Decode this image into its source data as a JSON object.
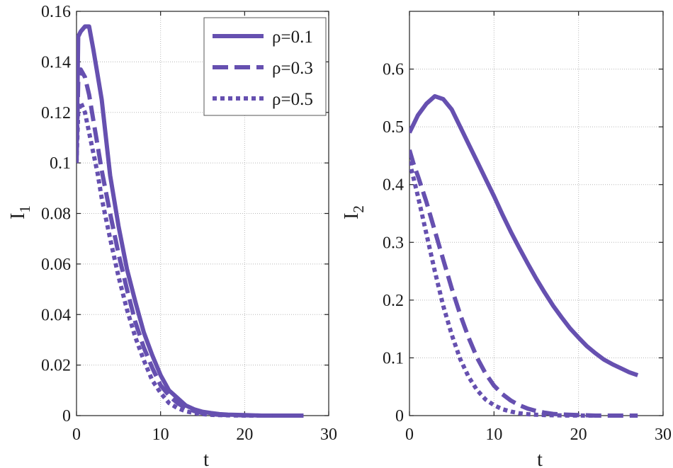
{
  "colors": {
    "series": "#6650b0"
  },
  "chart_data": [
    {
      "type": "line",
      "xlabel": "t",
      "ylabel": "I",
      "ylabel_subscript": "1",
      "xlim": [
        0,
        30
      ],
      "ylim": [
        0,
        0.16
      ],
      "xticks": [
        "0",
        "10",
        "20",
        "30"
      ],
      "yticks": [
        "0",
        "0.02",
        "0.04",
        "0.06",
        "0.08",
        "0.1",
        "0.12",
        "0.14",
        "0.16"
      ],
      "grid": true,
      "legend_position": "top-right",
      "series": [
        {
          "name": "ρ=0.1",
          "dash": "solid",
          "x": [
            0,
            0.2,
            0.5,
            1,
            1.5,
            2,
            2.5,
            3,
            4,
            5,
            6,
            7,
            8,
            9,
            10,
            11,
            12,
            13,
            14,
            15,
            16,
            17,
            18,
            20,
            22,
            25,
            27
          ],
          "y": [
            0.1,
            0.15,
            0.152,
            0.154,
            0.154,
            0.145,
            0.135,
            0.125,
            0.095,
            0.075,
            0.058,
            0.045,
            0.033,
            0.024,
            0.016,
            0.01,
            0.007,
            0.004,
            0.0025,
            0.0015,
            0.001,
            0.0006,
            0.0004,
            0.0002,
            0,
            0,
            0
          ]
        },
        {
          "name": "ρ=0.3",
          "dash": "dash",
          "x": [
            0,
            0.2,
            0.5,
            1,
            1.5,
            2,
            2.5,
            3,
            4,
            5,
            6,
            7,
            8,
            9,
            10,
            11,
            12,
            13,
            14,
            15,
            16,
            17,
            18,
            20,
            22,
            25,
            27
          ],
          "y": [
            0.1,
            0.132,
            0.137,
            0.134,
            0.127,
            0.117,
            0.107,
            0.097,
            0.08,
            0.064,
            0.05,
            0.037,
            0.027,
            0.019,
            0.012,
            0.008,
            0.005,
            0.003,
            0.0018,
            0.001,
            0.0006,
            0.0003,
            0.0002,
            0.0001,
            0,
            0,
            0
          ]
        },
        {
          "name": "ρ=0.5",
          "dash": "dot",
          "x": [
            0,
            0.2,
            0.5,
            1,
            1.5,
            2,
            2.5,
            3,
            4,
            5,
            6,
            7,
            8,
            9,
            10,
            11,
            12,
            13,
            14,
            15,
            16,
            17,
            18,
            20,
            22,
            25,
            27
          ],
          "y": [
            0.1,
            0.12,
            0.124,
            0.12,
            0.112,
            0.104,
            0.096,
            0.086,
            0.07,
            0.055,
            0.042,
            0.031,
            0.022,
            0.014,
            0.009,
            0.005,
            0.003,
            0.0017,
            0.001,
            0.0006,
            0.0003,
            0.0002,
            0.0001,
            0,
            0,
            0,
            0
          ]
        }
      ]
    },
    {
      "type": "line",
      "xlabel": "t",
      "ylabel": "I",
      "ylabel_subscript": "2",
      "xlim": [
        0,
        30
      ],
      "ylim": [
        0,
        0.7
      ],
      "xticks": [
        "0",
        "10",
        "20",
        "30"
      ],
      "yticks": [
        "0",
        "0.1",
        "0.2",
        "0.3",
        "0.4",
        "0.5",
        "0.6"
      ],
      "grid": true,
      "series": [
        {
          "name": "ρ=0.1",
          "dash": "solid",
          "x": [
            0,
            0.5,
            1,
            2,
            3,
            4,
            5,
            6,
            7,
            8,
            9,
            10,
            11,
            12,
            13,
            14,
            15,
            16,
            17,
            18,
            19,
            20,
            21,
            22,
            23,
            24,
            25,
            26,
            27
          ],
          "y": [
            0.49,
            0.505,
            0.52,
            0.54,
            0.553,
            0.548,
            0.53,
            0.5,
            0.47,
            0.44,
            0.41,
            0.38,
            0.348,
            0.318,
            0.29,
            0.263,
            0.237,
            0.213,
            0.19,
            0.17,
            0.151,
            0.135,
            0.12,
            0.108,
            0.097,
            0.089,
            0.082,
            0.075,
            0.07
          ]
        },
        {
          "name": "ρ=0.3",
          "dash": "dash",
          "x": [
            0,
            0.5,
            1,
            2,
            3,
            4,
            5,
            6,
            7,
            8,
            9,
            10,
            11,
            12,
            13,
            14,
            15,
            16,
            17,
            18,
            20,
            22,
            24,
            27
          ],
          "y": [
            0.46,
            0.435,
            0.415,
            0.37,
            0.32,
            0.27,
            0.22,
            0.175,
            0.135,
            0.1,
            0.073,
            0.052,
            0.037,
            0.026,
            0.018,
            0.012,
            0.008,
            0.005,
            0.003,
            0.002,
            0.001,
            0,
            0,
            0
          ]
        },
        {
          "name": "ρ=0.5",
          "dash": "dot",
          "x": [
            0,
            0.5,
            1,
            2,
            3,
            4,
            5,
            6,
            7,
            8,
            9,
            10,
            11,
            12,
            13,
            14,
            15,
            16,
            17,
            18,
            20,
            22
          ],
          "y": [
            0.44,
            0.41,
            0.38,
            0.315,
            0.25,
            0.19,
            0.14,
            0.098,
            0.067,
            0.044,
            0.028,
            0.018,
            0.011,
            0.007,
            0.004,
            0.0025,
            0.0015,
            0.001,
            0.0006,
            0.0003,
            0.0001,
            0
          ]
        }
      ]
    }
  ]
}
